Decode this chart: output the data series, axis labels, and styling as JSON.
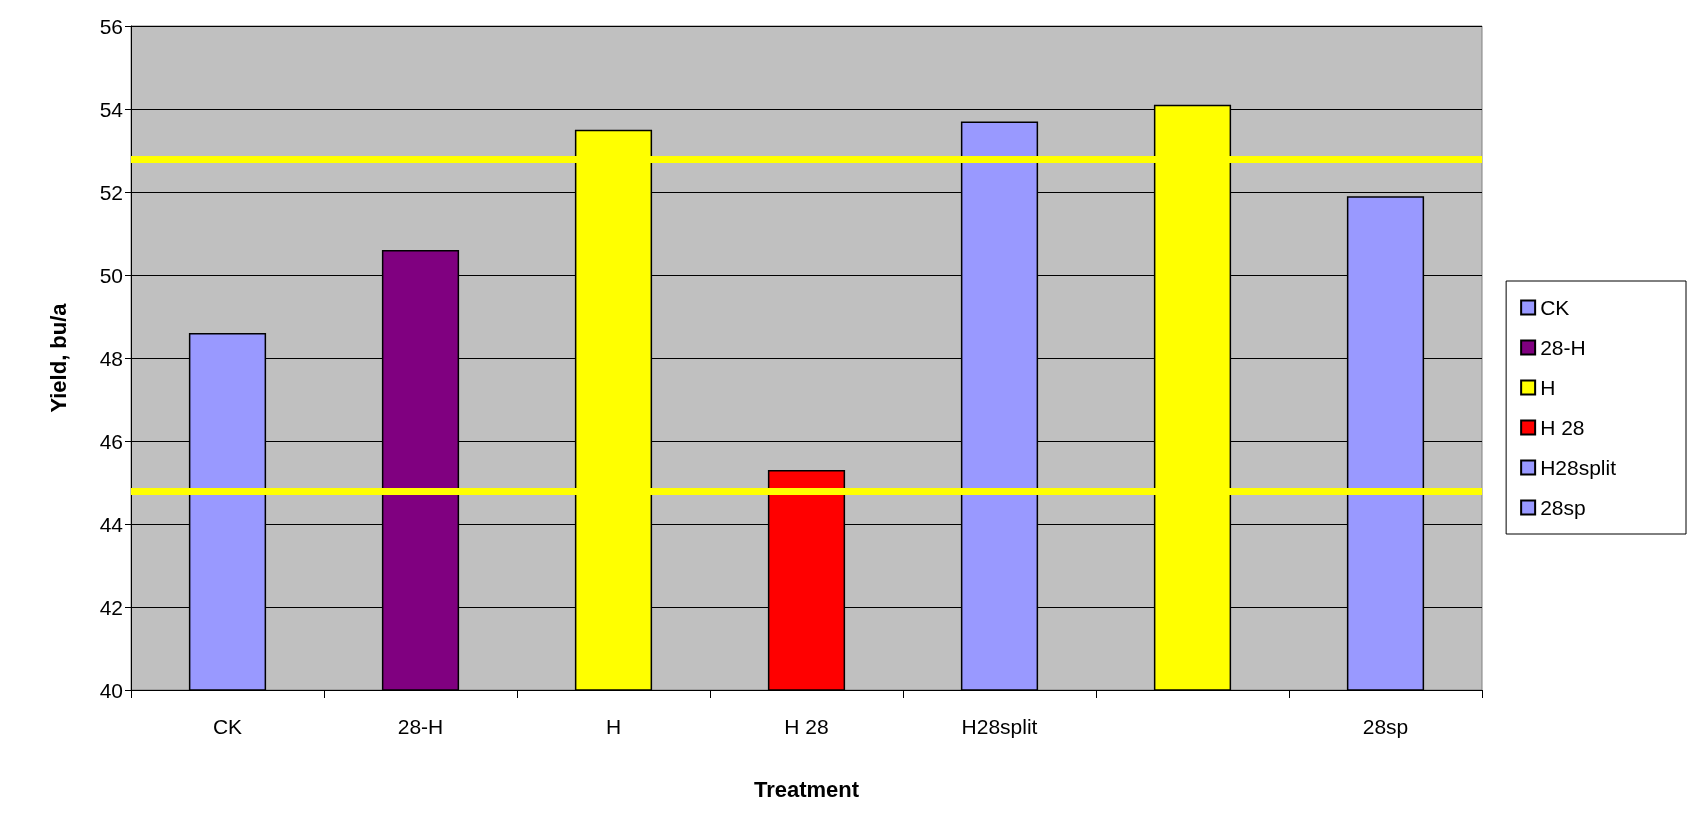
{
  "chart_data": {
    "type": "bar",
    "xlabel": "Treatment",
    "ylabel": "Yield, bu/a",
    "categories": [
      "CK",
      "28-H",
      "H",
      "H 28",
      "H28split",
      null,
      "28sp"
    ],
    "series": [
      {
        "name": "CK",
        "color": "#9999ff",
        "values": [
          48.6,
          null,
          null,
          null,
          null,
          null,
          null
        ]
      },
      {
        "name": "28-H",
        "color": "#800080",
        "values": [
          null,
          50.6,
          null,
          null,
          null,
          null,
          null
        ]
      },
      {
        "name": "H",
        "color": "#ffff00",
        "values": [
          null,
          null,
          53.5,
          null,
          null,
          null,
          null
        ]
      },
      {
        "name": "H 28",
        "color": "#ff0000",
        "values": [
          null,
          null,
          null,
          45.3,
          null,
          null,
          null
        ]
      },
      {
        "name": "H28split",
        "color": "#9999ff",
        "values": [
          null,
          null,
          null,
          null,
          53.7,
          null,
          null
        ]
      },
      {
        "color": "#ffff00",
        "values": [
          null,
          null,
          null,
          null,
          null,
          54.1,
          null
        ]
      },
      {
        "name": "28sp",
        "color": "#9999ff",
        "values": [
          null,
          null,
          null,
          null,
          null,
          null,
          51.9
        ]
      }
    ],
    "ylim": [
      40,
      56
    ],
    "yticks": [
      40,
      42,
      44,
      46,
      48,
      50,
      52,
      54,
      56
    ],
    "grid": "y",
    "legend": "right",
    "ref_lines": [
      {
        "axis": "y",
        "value": 52.8,
        "label": null,
        "color": "#ffff00"
      },
      {
        "axis": "y",
        "value": 44.8,
        "label": null,
        "color": "#ffff00"
      }
    ]
  }
}
